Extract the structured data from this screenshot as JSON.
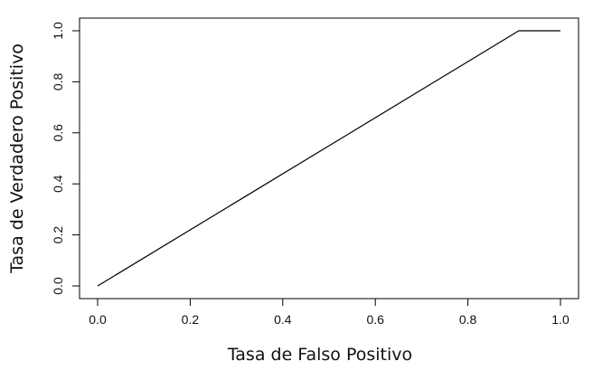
{
  "chart_data": {
    "type": "line",
    "title": "",
    "xlabel": "Tasa de Falso Positivo",
    "ylabel": "Tasa de Verdadero Positivo",
    "xlim": [
      0.0,
      1.0
    ],
    "ylim": [
      0.0,
      1.0
    ],
    "x_ticks": [
      0.0,
      0.2,
      0.4,
      0.6,
      0.8,
      1.0
    ],
    "y_ticks": [
      0.0,
      0.2,
      0.4,
      0.6,
      0.8,
      1.0
    ],
    "x_tick_labels": [
      "0.0",
      "0.2",
      "0.4",
      "0.6",
      "0.8",
      "1.0"
    ],
    "y_tick_labels": [
      "0.0",
      "0.2",
      "0.4",
      "0.6",
      "0.8",
      "1.0"
    ],
    "grid": false,
    "legend": "none",
    "line_color": "#000000",
    "series": [
      {
        "x": [
          0.0,
          0.91,
          1.0
        ],
        "y": [
          0.0,
          1.0,
          1.0
        ]
      }
    ]
  }
}
